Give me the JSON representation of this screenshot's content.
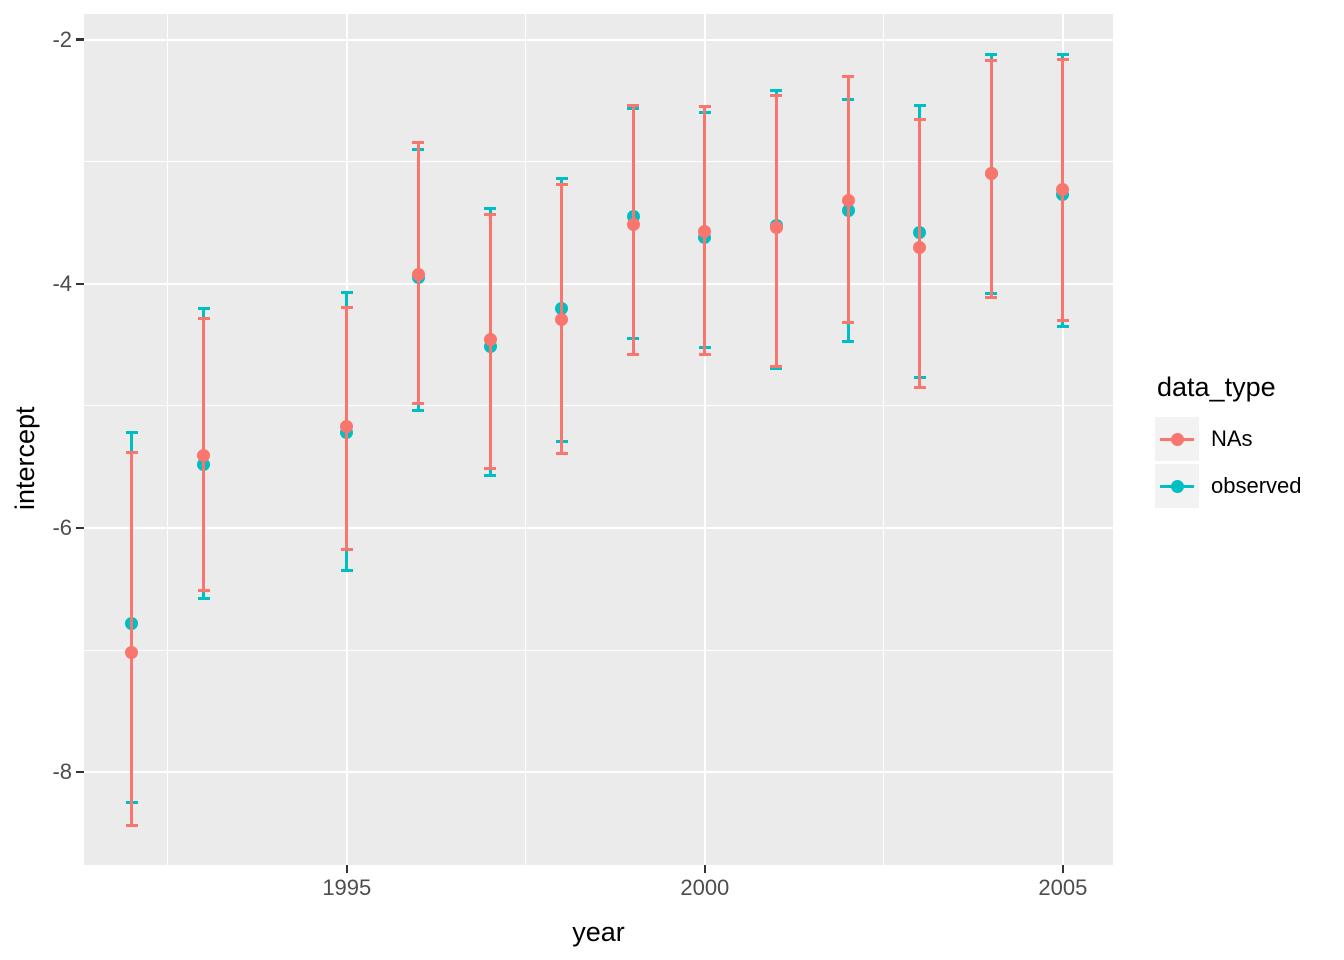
{
  "chart_data": {
    "type": "pointrange-errorbar",
    "title": "",
    "xlabel": "year",
    "ylabel": "intercept",
    "x_ticks": [
      1995,
      2000,
      2005
    ],
    "x_tick_labels": [
      "1995",
      "2000",
      "2005"
    ],
    "y_ticks": [
      -2,
      -4,
      -6,
      -8
    ],
    "y_tick_labels": [
      "-2",
      "-4",
      "-6",
      "-8"
    ],
    "x_minor_gridlines": [
      1992.5,
      1997.5,
      2002.5
    ],
    "y_minor_gridlines": [
      -3,
      -5,
      -7
    ],
    "xlim": [
      1991.33,
      2005.7
    ],
    "ylim": [
      -8.76,
      -1.79
    ],
    "grid": "on",
    "panel_background": "#EBEBEB",
    "gridline_color": "#ffffff",
    "legend": {
      "position": "right",
      "title": "data_type",
      "entries": [
        {
          "label": "NAs",
          "color": "#F8766D"
        },
        {
          "label": "observed",
          "color": "#00BFC4"
        }
      ]
    },
    "series": [
      {
        "name": "observed",
        "color": "#00BFC4",
        "points": [
          {
            "x": 1992,
            "y": -6.78,
            "ymin": -8.25,
            "ymax": -5.22
          },
          {
            "x": 1993,
            "y": -5.48,
            "ymin": -6.58,
            "ymax": -4.2
          },
          {
            "x": 1995,
            "y": -5.22,
            "ymin": -6.35,
            "ymax": -4.07
          },
          {
            "x": 1996,
            "y": -3.95,
            "ymin": -5.04,
            "ymax": -2.9
          },
          {
            "x": 1997,
            "y": -4.51,
            "ymin": -5.57,
            "ymax": -3.38
          },
          {
            "x": 1998,
            "y": -4.2,
            "ymin": -5.29,
            "ymax": -3.14
          },
          {
            "x": 1999,
            "y": -3.45,
            "ymin": -4.45,
            "ymax": -2.56
          },
          {
            "x": 2000,
            "y": -3.62,
            "ymin": -4.52,
            "ymax": -2.6
          },
          {
            "x": 2001,
            "y": -3.52,
            "ymin": -4.69,
            "ymax": -2.42
          },
          {
            "x": 2002,
            "y": -3.4,
            "ymin": -4.47,
            "ymax": -2.49
          },
          {
            "x": 2003,
            "y": -3.58,
            "ymin": -4.77,
            "ymax": -2.54
          },
          {
            "x": 2004,
            "y": -3.1,
            "ymin": -4.08,
            "ymax": -2.12
          },
          {
            "x": 2005,
            "y": -3.27,
            "ymin": -4.35,
            "ymax": -2.12
          }
        ]
      },
      {
        "name": "NAs",
        "color": "#F8766D",
        "points": [
          {
            "x": 1992,
            "y": -7.02,
            "ymin": -8.44,
            "ymax": -5.38
          },
          {
            "x": 1993,
            "y": -5.41,
            "ymin": -6.51,
            "ymax": -4.28
          },
          {
            "x": 1995,
            "y": -5.17,
            "ymin": -6.18,
            "ymax": -4.19
          },
          {
            "x": 1996,
            "y": -3.92,
            "ymin": -4.98,
            "ymax": -2.84
          },
          {
            "x": 1997,
            "y": -4.46,
            "ymin": -5.51,
            "ymax": -3.43
          },
          {
            "x": 1998,
            "y": -4.29,
            "ymin": -5.39,
            "ymax": -3.19
          },
          {
            "x": 1999,
            "y": -3.51,
            "ymin": -4.58,
            "ymax": -2.54
          },
          {
            "x": 2000,
            "y": -3.57,
            "ymin": -4.58,
            "ymax": -2.55
          },
          {
            "x": 2001,
            "y": -3.54,
            "ymin": -4.68,
            "ymax": -2.46
          },
          {
            "x": 2002,
            "y": -3.32,
            "ymin": -4.32,
            "ymax": -2.3
          },
          {
            "x": 2003,
            "y": -3.7,
            "ymin": -4.85,
            "ymax": -2.65
          },
          {
            "x": 2004,
            "y": -3.1,
            "ymin": -4.11,
            "ymax": -2.17
          },
          {
            "x": 2005,
            "y": -3.23,
            "ymin": -4.3,
            "ymax": -2.16
          }
        ]
      }
    ]
  }
}
